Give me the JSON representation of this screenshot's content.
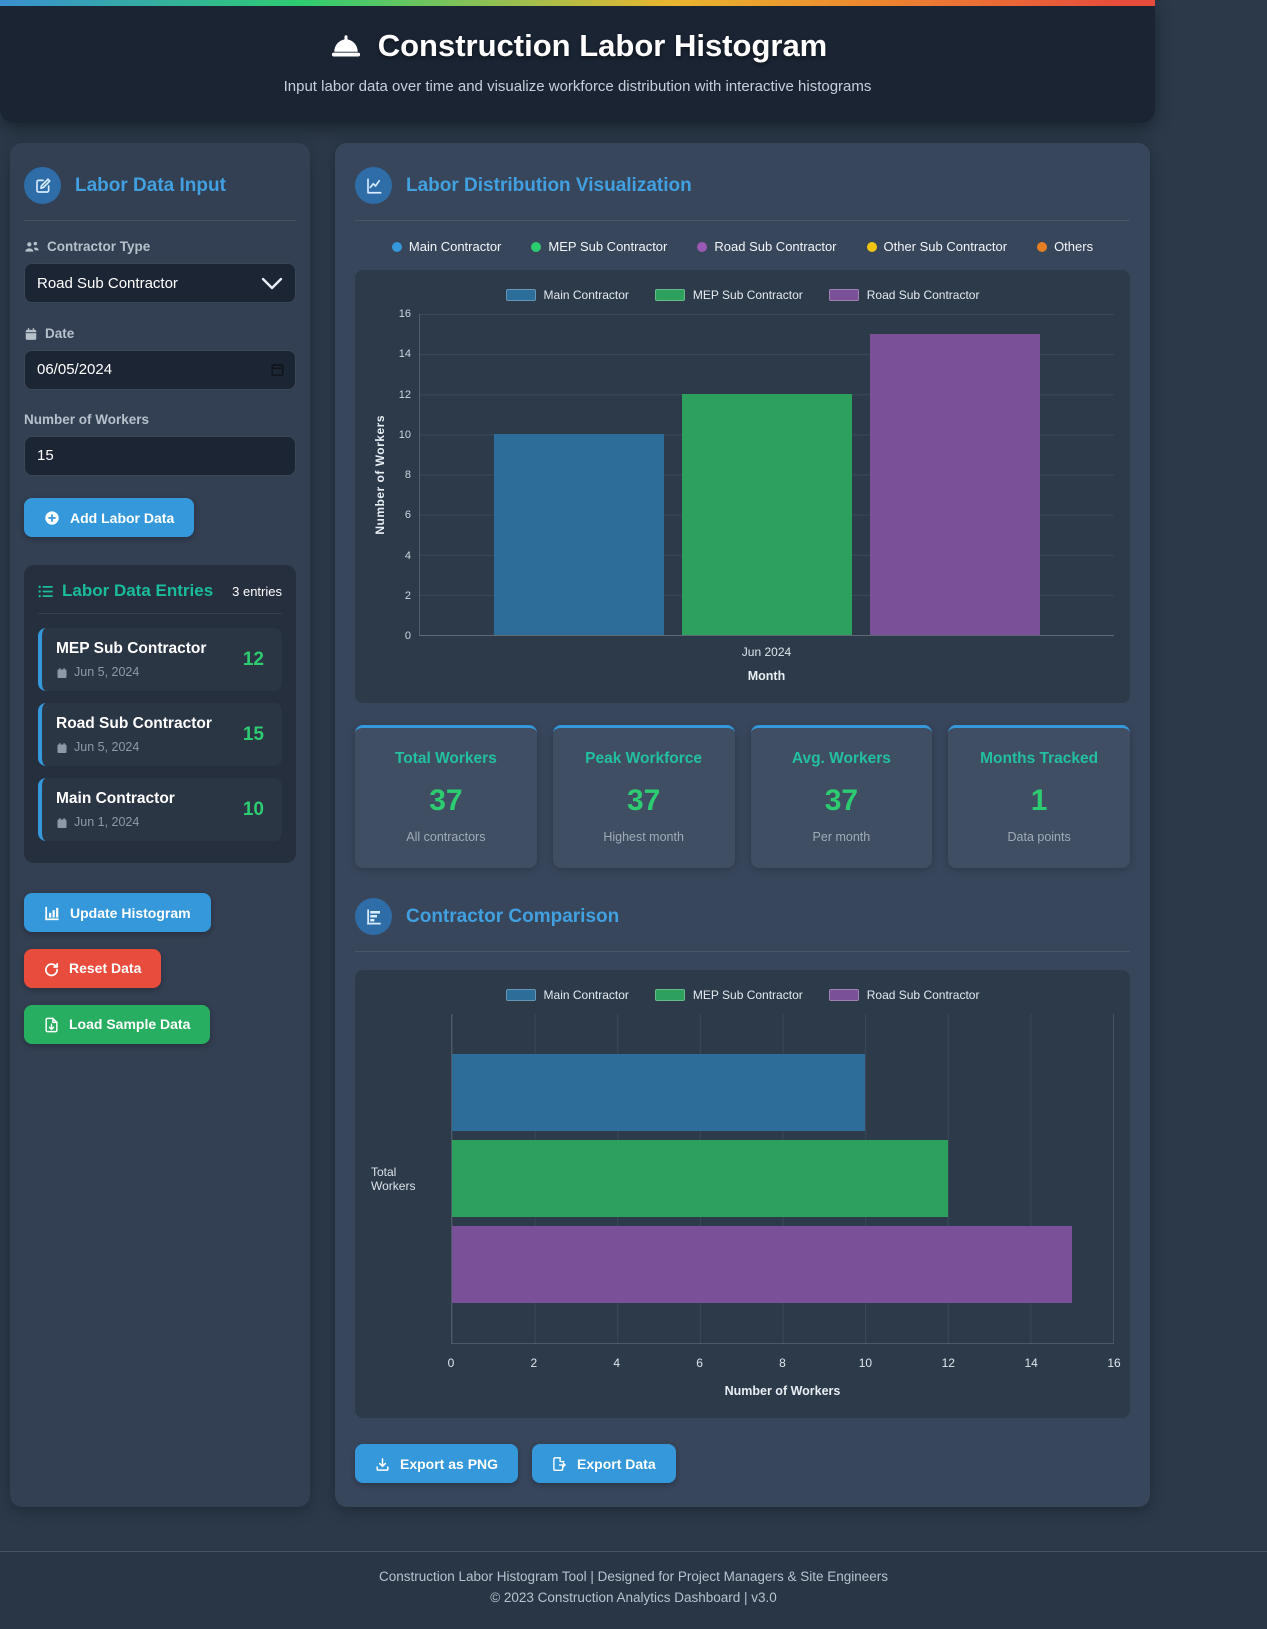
{
  "app": {
    "title": "Construction Labor Histogram",
    "subtitle": "Input labor data over time and visualize workforce distribution with interactive histograms"
  },
  "colors": {
    "accent_blue": "#3498db",
    "accent_teal": "#1abc9c",
    "accent_green": "#2ecc71",
    "accent_red": "#e74c3c",
    "bar_blue": "#2d6d99",
    "bar_green": "#2da05e",
    "bar_purple": "#7a5198"
  },
  "sidebar": {
    "title": "Labor Data Input",
    "contractor_type": {
      "label": "Contractor Type",
      "value": "Road Sub Contractor"
    },
    "date": {
      "label": "Date",
      "value": "06/05/2024"
    },
    "workers": {
      "label": "Number of Workers",
      "value": "15"
    },
    "add_button": "Add Labor Data",
    "entries": {
      "title": "Labor Data Entries",
      "count": "3 entries",
      "items": [
        {
          "name": "MEP Sub Contractor",
          "date": "Jun 5, 2024",
          "value": "12"
        },
        {
          "name": "Road Sub Contractor",
          "date": "Jun 5, 2024",
          "value": "15"
        },
        {
          "name": "Main Contractor",
          "date": "Jun 1, 2024",
          "value": "10"
        }
      ]
    },
    "update_button": "Update Histogram",
    "reset_button": "Reset Data",
    "load_button": "Load Sample Data"
  },
  "main": {
    "viz_title": "Labor Distribution Visualization",
    "comparison_title": "Contractor Comparison",
    "type_legend": [
      {
        "label": "Main Contractor",
        "color": "#3498db"
      },
      {
        "label": "MEP Sub Contractor",
        "color": "#2ecc71"
      },
      {
        "label": "Road Sub Contractor",
        "color": "#9b59b6"
      },
      {
        "label": "Other Sub Contractor",
        "color": "#f1c40f"
      },
      {
        "label": "Others",
        "color": "#e67e22"
      }
    ],
    "stats": [
      {
        "title": "Total Workers",
        "value": "37",
        "subtitle": "All contractors"
      },
      {
        "title": "Peak Workforce",
        "value": "37",
        "subtitle": "Highest month"
      },
      {
        "title": "Avg. Workers",
        "value": "37",
        "subtitle": "Per month"
      },
      {
        "title": "Months Tracked",
        "value": "1",
        "subtitle": "Data points"
      }
    ],
    "export_png": "Export as PNG",
    "export_data": "Export Data"
  },
  "chart_data": [
    {
      "type": "bar",
      "title": "",
      "categories": [
        "Jun 2024"
      ],
      "series": [
        {
          "name": "Main Contractor",
          "values": [
            10
          ],
          "color": "#2d6d99"
        },
        {
          "name": "MEP Sub Contractor",
          "values": [
            12
          ],
          "color": "#2da05e"
        },
        {
          "name": "Road Sub Contractor",
          "values": [
            15
          ],
          "color": "#7a5198"
        }
      ],
      "xlabel": "Month",
      "ylabel": "Number of Workers",
      "ylim": [
        0,
        16
      ],
      "yticks": [
        16,
        14,
        12,
        10,
        8,
        6,
        4,
        2,
        0
      ],
      "grid": true,
      "legend_position": "top"
    },
    {
      "type": "bar-horizontal",
      "title": "",
      "categories": [
        "Total Workers"
      ],
      "series": [
        {
          "name": "Main Contractor",
          "values": [
            10
          ],
          "color": "#2d6d99"
        },
        {
          "name": "MEP Sub Contractor",
          "values": [
            12
          ],
          "color": "#2da05e"
        },
        {
          "name": "Road Sub Contractor",
          "values": [
            15
          ],
          "color": "#7a5198"
        }
      ],
      "xlabel": "Number of Workers",
      "xlim": [
        0,
        16
      ],
      "xticks": [
        0,
        2,
        4,
        6,
        8,
        10,
        12,
        14,
        16
      ],
      "grid": true,
      "legend_position": "top"
    }
  ],
  "footer": {
    "line1": "Construction Labor Histogram Tool | Designed for Project Managers & Site Engineers",
    "line2": "© 2023 Construction Analytics Dashboard | v3.0"
  }
}
